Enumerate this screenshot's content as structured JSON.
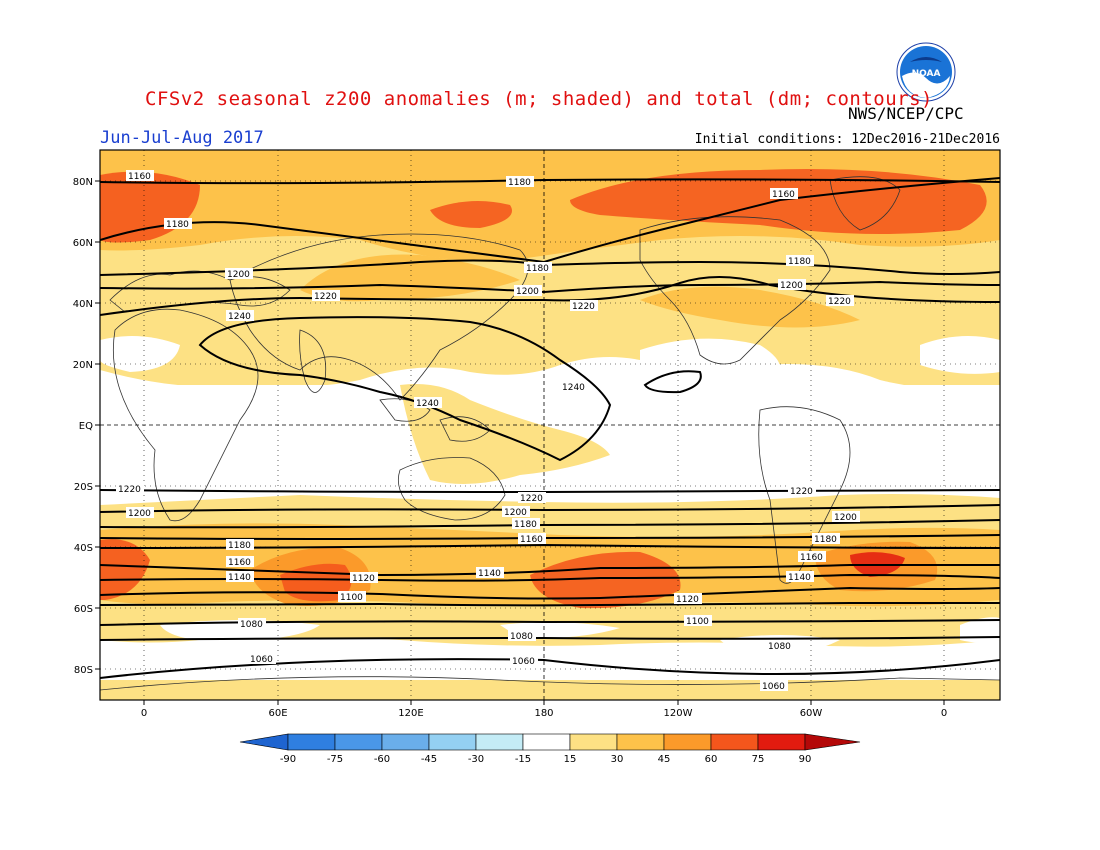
{
  "title": "CFSv2 seasonal z200 anomalies (m; shaded) and total (dm; contours)",
  "period": "Jun-Jul-Aug 2017",
  "agency": "NWS/NCEP/CPC",
  "logo_text": "NOAA",
  "initial_conditions": "Initial conditions: 12Dec2016-21Dec2016",
  "lat_labels": [
    "80N",
    "60N",
    "40N",
    "20N",
    "EQ",
    "20S",
    "40S",
    "60S",
    "80S"
  ],
  "lon_labels": [
    "0",
    "60E",
    "120E",
    "180",
    "120W",
    "60W",
    "0"
  ],
  "colorbar": {
    "labels": [
      "-90",
      "-75",
      "-60",
      "-45",
      "-30",
      "-15",
      "15",
      "30",
      "45",
      "60",
      "75",
      "90"
    ],
    "colors": [
      "#1e64d0",
      "#2f7fe0",
      "#4a97e8",
      "#6aaeea",
      "#94d0f2",
      "#c4ecf6",
      "#ffffff",
      "#fde184",
      "#fdc24a",
      "#fb9a2a",
      "#f4561c",
      "#e21b0f",
      "#b40808"
    ]
  },
  "contour_labels": {
    "c1160": "1160",
    "c1180": "1180",
    "c1200": "1200",
    "c1220": "1220",
    "c1240": "1240",
    "c1140": "1140",
    "c1120": "1120",
    "c1100": "1100",
    "c1080": "1080",
    "c1060": "1060"
  }
}
